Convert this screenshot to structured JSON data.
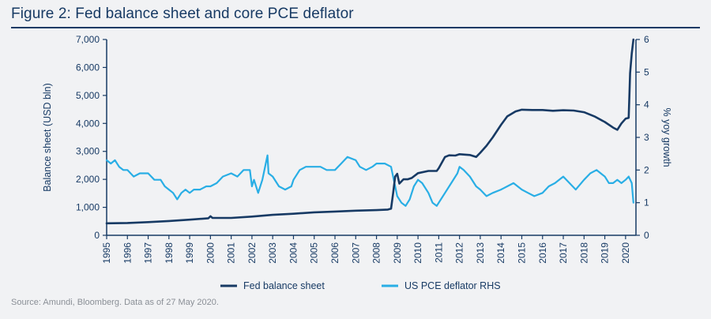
{
  "header": {
    "title": "Figure 2: Fed balance sheet and core PCE deflator"
  },
  "footer": {
    "source": "Source: Amundi, Bloomberg. Data as of 27 May 2020."
  },
  "colors": {
    "balance": "#173a64",
    "pce": "#29aee5",
    "text": "#173a64",
    "background": "#f1f2f4"
  },
  "chart_data": {
    "type": "line",
    "title": "Figure 2: Fed balance sheet and core PCE deflator",
    "ylabel": "Balance sheet (USD bln)",
    "y2label": "% yoy growth",
    "ylim": [
      0,
      7000
    ],
    "y2lim": [
      0,
      6
    ],
    "xlim": [
      1995,
      2020.5
    ],
    "grid": false,
    "legend": "bottom-center",
    "y_ticks": [
      "0",
      "1,000",
      "2,000",
      "3,000",
      "4,000",
      "5,000",
      "6,000",
      "7,000"
    ],
    "y2_ticks": [
      "0",
      "1",
      "2",
      "3",
      "4",
      "5",
      "6"
    ],
    "x_ticks": [
      "1995",
      "1996",
      "1997",
      "1998",
      "1999",
      "2000",
      "2001",
      "2002",
      "2003",
      "2004",
      "2005",
      "2006",
      "2007",
      "2008",
      "2009",
      "2010",
      "2011",
      "2012",
      "2013",
      "2014",
      "2015",
      "2016",
      "2017",
      "2018",
      "2019",
      "2020"
    ],
    "series": [
      {
        "name": "Fed balance sheet",
        "axis": "left",
        "color": "#173a64",
        "points": [
          [
            1995,
            430
          ],
          [
            1996,
            440
          ],
          [
            1997,
            470
          ],
          [
            1998,
            510
          ],
          [
            1999,
            560
          ],
          [
            1999.9,
            610
          ],
          [
            2000,
            680
          ],
          [
            2000.1,
            620
          ],
          [
            2001,
            620
          ],
          [
            2002,
            670
          ],
          [
            2003,
            730
          ],
          [
            2004,
            770
          ],
          [
            2005,
            820
          ],
          [
            2006,
            850
          ],
          [
            2007,
            880
          ],
          [
            2008,
            900
          ],
          [
            2008.55,
            920
          ],
          [
            2008.7,
            950
          ],
          [
            2008.8,
            1500
          ],
          [
            2008.9,
            2100
          ],
          [
            2009,
            2200
          ],
          [
            2009.1,
            1850
          ],
          [
            2009.3,
            2000
          ],
          [
            2009.5,
            2000
          ],
          [
            2009.7,
            2050
          ],
          [
            2010,
            2220
          ],
          [
            2010.5,
            2300
          ],
          [
            2010.9,
            2300
          ],
          [
            2011,
            2400
          ],
          [
            2011.3,
            2800
          ],
          [
            2011.5,
            2860
          ],
          [
            2011.8,
            2850
          ],
          [
            2012,
            2900
          ],
          [
            2012.5,
            2870
          ],
          [
            2012.8,
            2800
          ],
          [
            2013,
            2950
          ],
          [
            2013.3,
            3200
          ],
          [
            2013.6,
            3500
          ],
          [
            2014,
            3950
          ],
          [
            2014.3,
            4250
          ],
          [
            2014.7,
            4430
          ],
          [
            2015,
            4490
          ],
          [
            2015.5,
            4480
          ],
          [
            2016,
            4480
          ],
          [
            2016.5,
            4450
          ],
          [
            2017,
            4470
          ],
          [
            2017.5,
            4460
          ],
          [
            2018,
            4400
          ],
          [
            2018.5,
            4250
          ],
          [
            2019,
            4050
          ],
          [
            2019.4,
            3850
          ],
          [
            2019.6,
            3770
          ],
          [
            2019.8,
            4000
          ],
          [
            2020,
            4170
          ],
          [
            2020.15,
            4200
          ],
          [
            2020.22,
            5800
          ],
          [
            2020.3,
            6500
          ],
          [
            2020.38,
            7000
          ]
        ]
      },
      {
        "name": "US PCE deflator RHS",
        "axis": "right",
        "color": "#29aee5",
        "points": [
          [
            1995,
            2.3
          ],
          [
            1995.2,
            2.2
          ],
          [
            1995.4,
            2.3
          ],
          [
            1995.6,
            2.1
          ],
          [
            1995.8,
            2.0
          ],
          [
            1996,
            2.0
          ],
          [
            1996.3,
            1.8
          ],
          [
            1996.6,
            1.9
          ],
          [
            1997,
            1.9
          ],
          [
            1997.3,
            1.7
          ],
          [
            1997.6,
            1.7
          ],
          [
            1997.8,
            1.5
          ],
          [
            1998,
            1.4
          ],
          [
            1998.2,
            1.3
          ],
          [
            1998.4,
            1.1
          ],
          [
            1998.6,
            1.3
          ],
          [
            1998.8,
            1.4
          ],
          [
            1999,
            1.3
          ],
          [
            1999.2,
            1.4
          ],
          [
            1999.5,
            1.4
          ],
          [
            1999.8,
            1.5
          ],
          [
            2000,
            1.5
          ],
          [
            2000.3,
            1.6
          ],
          [
            2000.6,
            1.8
          ],
          [
            2001,
            1.9
          ],
          [
            2001.3,
            1.8
          ],
          [
            2001.6,
            2.0
          ],
          [
            2001.9,
            2.0
          ],
          [
            2002.0,
            1.5
          ],
          [
            2002.1,
            1.7
          ],
          [
            2002.3,
            1.3
          ],
          [
            2002.5,
            1.7
          ],
          [
            2002.7,
            2.3
          ],
          [
            2002.75,
            2.45
          ],
          [
            2002.8,
            1.9
          ],
          [
            2003,
            1.8
          ],
          [
            2003.3,
            1.5
          ],
          [
            2003.6,
            1.4
          ],
          [
            2003.9,
            1.5
          ],
          [
            2004,
            1.7
          ],
          [
            2004.3,
            2.0
          ],
          [
            2004.6,
            2.1
          ],
          [
            2005,
            2.1
          ],
          [
            2005.3,
            2.1
          ],
          [
            2005.6,
            2.0
          ],
          [
            2006,
            2.0
          ],
          [
            2006.3,
            2.2
          ],
          [
            2006.6,
            2.4
          ],
          [
            2007,
            2.3
          ],
          [
            2007.2,
            2.1
          ],
          [
            2007.5,
            2.0
          ],
          [
            2007.8,
            2.1
          ],
          [
            2008,
            2.2
          ],
          [
            2008.4,
            2.2
          ],
          [
            2008.7,
            2.1
          ],
          [
            2008.9,
            1.5
          ],
          [
            2009,
            1.2
          ],
          [
            2009.2,
            1.0
          ],
          [
            2009.4,
            0.9
          ],
          [
            2009.6,
            1.1
          ],
          [
            2009.8,
            1.5
          ],
          [
            2010,
            1.7
          ],
          [
            2010.2,
            1.6
          ],
          [
            2010.5,
            1.3
          ],
          [
            2010.7,
            1.0
          ],
          [
            2010.9,
            0.9
          ],
          [
            2011,
            1.0
          ],
          [
            2011.3,
            1.3
          ],
          [
            2011.6,
            1.6
          ],
          [
            2011.9,
            1.9
          ],
          [
            2012,
            2.1
          ],
          [
            2012.2,
            2.0
          ],
          [
            2012.5,
            1.8
          ],
          [
            2012.8,
            1.5
          ],
          [
            2013,
            1.4
          ],
          [
            2013.3,
            1.2
          ],
          [
            2013.6,
            1.3
          ],
          [
            2014,
            1.4
          ],
          [
            2014.3,
            1.5
          ],
          [
            2014.6,
            1.6
          ],
          [
            2015,
            1.4
          ],
          [
            2015.3,
            1.3
          ],
          [
            2015.6,
            1.2
          ],
          [
            2016,
            1.3
          ],
          [
            2016.3,
            1.5
          ],
          [
            2016.6,
            1.6
          ],
          [
            2017,
            1.8
          ],
          [
            2017.3,
            1.6
          ],
          [
            2017.6,
            1.4
          ],
          [
            2018,
            1.7
          ],
          [
            2018.3,
            1.9
          ],
          [
            2018.6,
            2.0
          ],
          [
            2019,
            1.8
          ],
          [
            2019.2,
            1.6
          ],
          [
            2019.4,
            1.6
          ],
          [
            2019.6,
            1.7
          ],
          [
            2019.8,
            1.6
          ],
          [
            2020,
            1.7
          ],
          [
            2020.15,
            1.8
          ],
          [
            2020.3,
            1.6
          ],
          [
            2020.38,
            1.0
          ]
        ]
      }
    ]
  }
}
